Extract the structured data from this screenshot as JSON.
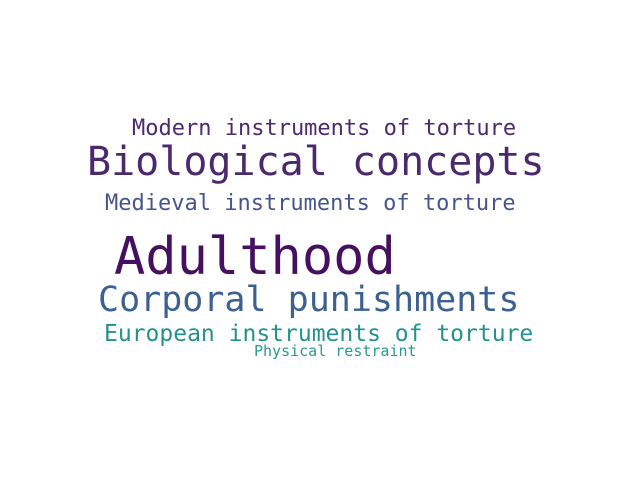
{
  "word_cloud": {
    "words": [
      {
        "id": "modern",
        "text": "Modern instruments of torture",
        "color": "#4d2a6e"
      },
      {
        "id": "bio",
        "text": "Biological concepts",
        "color": "#4b2a6c"
      },
      {
        "id": "medieval",
        "text": "Medieval instruments of torture",
        "color": "#46558c"
      },
      {
        "id": "adult",
        "text": "Adulthood",
        "color": "#44105f"
      },
      {
        "id": "corporal",
        "text": "Corporal punishments",
        "color": "#3c6190"
      },
      {
        "id": "european",
        "text": "European instruments of torture",
        "color": "#24928c"
      },
      {
        "id": "physical",
        "text": "Physical restraint",
        "color": "#2b9a8e"
      }
    ]
  }
}
